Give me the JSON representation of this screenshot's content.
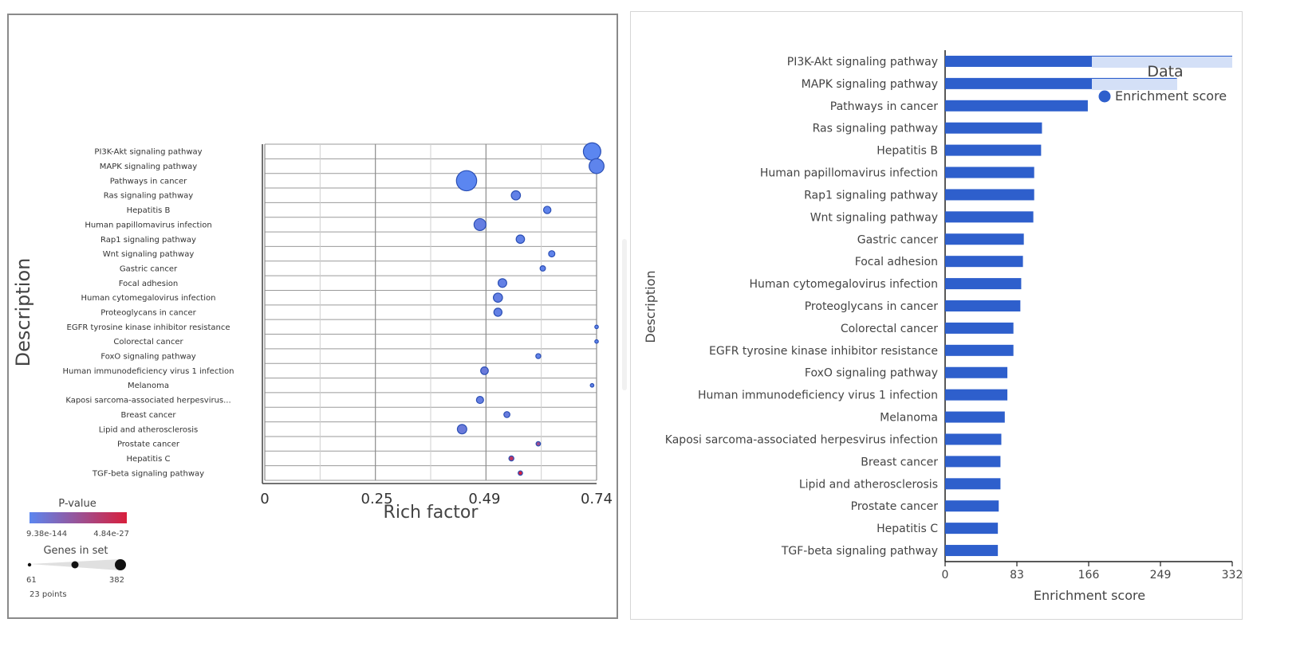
{
  "pathways": [
    "PI3K-Akt signaling pathway",
    "MAPK signaling pathway",
    "Pathways in cancer",
    "Ras signaling pathway",
    "Hepatitis B",
    "Human papillomavirus infection",
    "Rap1 signaling pathway",
    "Wnt signaling pathway",
    "Gastric cancer",
    "Focal adhesion",
    "Human cytomegalovirus infection",
    "Proteoglycans in cancer",
    "EGFR tyrosine kinase inhibitor resistance",
    "Colorectal cancer",
    "FoxO signaling pathway",
    "Human immunodeficiency virus 1 infection",
    "Melanoma",
    "Kaposi sarcoma-associated herpesvirus infection",
    "Breast cancer",
    "Lipid and atherosclerosis",
    "Prostate cancer",
    "Hepatitis C",
    "TGF-beta signaling pathway"
  ],
  "chart_data": [
    {
      "type": "scatter",
      "title": "",
      "xlabel": "Rich factor",
      "ylabel": "Description",
      "xlim": [
        0,
        0.74
      ],
      "x_ticks": [
        "0",
        "0.25",
        "0.49",
        "0.74"
      ],
      "x_tick_values": [
        0,
        0.25,
        0.49,
        0.74
      ],
      "categories": [
        "PI3K-Akt signaling pathway",
        "MAPK signaling pathway",
        "Pathways in cancer",
        "Ras signaling pathway",
        "Hepatitis B",
        "Human papillomavirus infection",
        "Rap1 signaling pathway",
        "Wnt signaling pathway",
        "Gastric cancer",
        "Focal adhesion",
        "Human cytomegalovirus infection",
        "Proteoglycans in cancer",
        "EGFR tyrosine kinase inhibitor resistance",
        "Colorectal cancer",
        "FoxO signaling pathway",
        "Human immunodeficiency virus 1 infection",
        "Melanoma",
        "Kaposi sarcoma-associated herpesvirus...",
        "Breast cancer",
        "Lipid and atherosclerosis",
        "Prostate cancer",
        "Hepatitis C",
        "TGF-beta signaling pathway"
      ],
      "rich_factor": [
        0.73,
        0.74,
        0.45,
        0.56,
        0.63,
        0.48,
        0.57,
        0.64,
        0.62,
        0.53,
        0.52,
        0.52,
        0.74,
        0.74,
        0.61,
        0.49,
        0.73,
        0.48,
        0.54,
        0.44,
        0.61,
        0.55,
        0.57
      ],
      "genes_in_set": [
        340,
        300,
        382,
        200,
        165,
        250,
        185,
        140,
        120,
        190,
        200,
        180,
        61,
        61,
        110,
        170,
        65,
        160,
        135,
        205,
        95,
        110,
        95
      ],
      "p_value_rank": [
        0.0,
        0.02,
        0.0,
        0.05,
        0.03,
        0.08,
        0.05,
        0.03,
        0.04,
        0.06,
        0.07,
        0.06,
        0.02,
        0.02,
        0.05,
        0.12,
        0.05,
        0.08,
        0.1,
        0.12,
        0.55,
        0.8,
        0.98
      ],
      "legend": {
        "color_title": "P-value",
        "color_min_label": "9.38e-144",
        "color_max_label": "4.84e-27",
        "color_low": "#5b86f0",
        "color_high": "#d81f3c",
        "size_title": "Genes in set",
        "size_min_label": "61",
        "size_max_label": "382",
        "points_label": "23 points"
      },
      "marker_fill": "#3f6fe2"
    },
    {
      "type": "bar",
      "orientation": "horizontal",
      "title": "",
      "xlabel": "Enrichment score",
      "ylabel": "Description",
      "xlim": [
        0,
        332
      ],
      "x_ticks": [
        "0",
        "83",
        "166",
        "249",
        "332"
      ],
      "x_tick_values": [
        0,
        83,
        166,
        249,
        332
      ],
      "categories": [
        "PI3K-Akt signaling pathway",
        "MAPK signaling pathway",
        "Pathways in cancer",
        "Ras signaling pathway",
        "Hepatitis B",
        "Human papillomavirus infection",
        "Rap1 signaling pathway",
        "Wnt signaling pathway",
        "Gastric cancer",
        "Focal adhesion",
        "Human cytomegalovirus infection",
        "Proteoglycans in cancer",
        "Colorectal cancer",
        "EGFR tyrosine kinase inhibitor resistance",
        "FoxO signaling pathway",
        "Human immunodeficiency virus 1 infection",
        "Melanoma",
        "Kaposi sarcoma-associated herpesvirus infection",
        "Breast cancer",
        "Lipid and atherosclerosis",
        "Prostate cancer",
        "Hepatitis C",
        "TGF-beta signaling pathway"
      ],
      "values": [
        332,
        268,
        165,
        112,
        111,
        103,
        103,
        102,
        91,
        90,
        88,
        87,
        79,
        79,
        72,
        72,
        69,
        65,
        64,
        64,
        62,
        61,
        61
      ],
      "bar_color": "#2e5fcc",
      "legend": {
        "title": "Data",
        "entry": "Enrichment score",
        "placement": "top-right"
      }
    }
  ],
  "colors": {
    "bar": "#2e5fcc",
    "highlight": "#d4e0f7",
    "grid": "#9a9a9a",
    "text": "#333333"
  }
}
